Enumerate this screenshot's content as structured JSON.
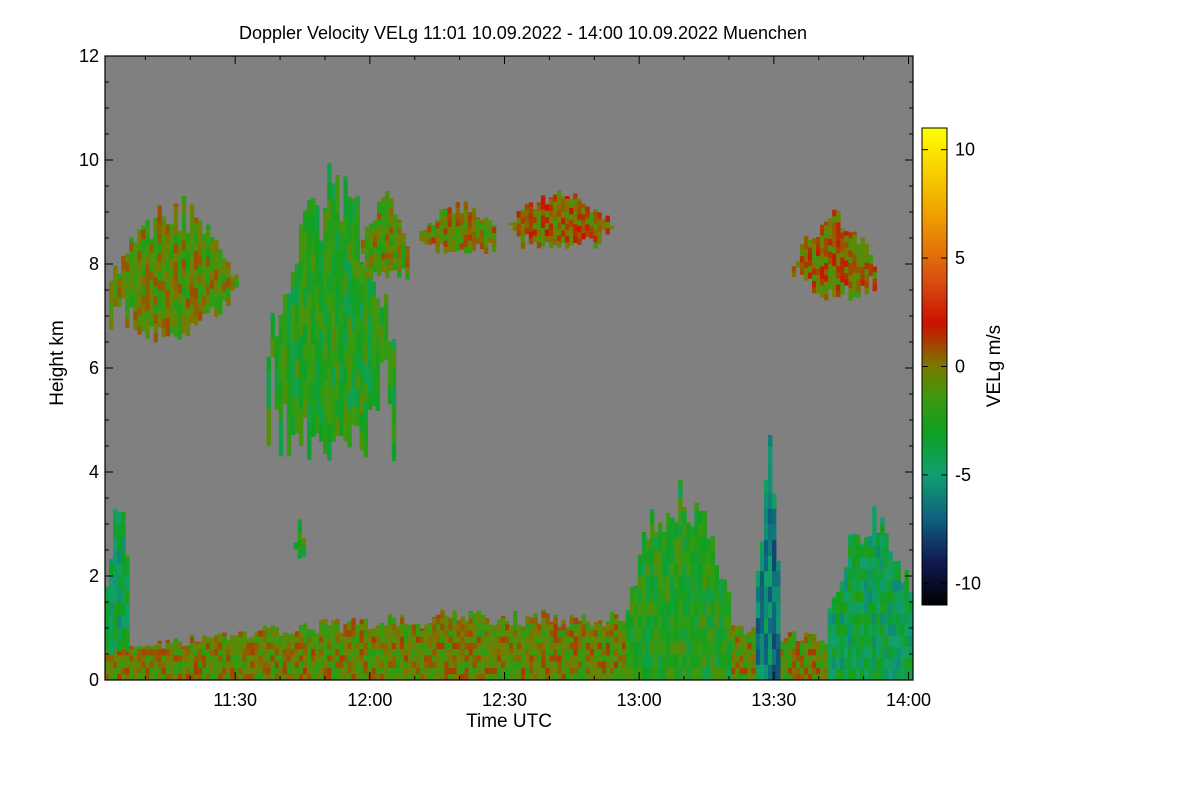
{
  "chart_data": {
    "type": "heatmap",
    "title": "Doppler Velocity VELg   11:01 10.09.2022 - 14:00 10.09.2022 Muenchen",
    "xlabel": "Time UTC",
    "ylabel": "Height km",
    "x_range_minutes_utc": [
      661,
      841
    ],
    "x_ticks": [
      {
        "minute": 690,
        "label": "11:30"
      },
      {
        "minute": 720,
        "label": "12:00"
      },
      {
        "minute": 750,
        "label": "12:30"
      },
      {
        "minute": 780,
        "label": "13:00"
      },
      {
        "minute": 810,
        "label": "13:30"
      },
      {
        "minute": 840,
        "label": "14:00"
      }
    ],
    "y_range_km": [
      0,
      12
    ],
    "y_ticks": [
      {
        "value": 0,
        "label": "0"
      },
      {
        "value": 2,
        "label": "2"
      },
      {
        "value": 4,
        "label": "4"
      },
      {
        "value": 6,
        "label": "6"
      },
      {
        "value": 8,
        "label": "8"
      },
      {
        "value": 10,
        "label": "10"
      },
      {
        "value": 12,
        "label": "12"
      }
    ],
    "background_color": "#808080",
    "colorbar": {
      "label": "VELg m/s",
      "range": [
        -11,
        11
      ],
      "ticks": [
        {
          "value": 10,
          "label": "10"
        },
        {
          "value": 5,
          "label": "5"
        },
        {
          "value": 0,
          "label": "0"
        },
        {
          "value": -5,
          "label": "-5"
        },
        {
          "value": -10,
          "label": "-10"
        }
      ],
      "stops": [
        {
          "value": 11,
          "color": "#ffff00"
        },
        {
          "value": 7,
          "color": "#f0a000"
        },
        {
          "value": 4,
          "color": "#d85010"
        },
        {
          "value": 2,
          "color": "#cc1000"
        },
        {
          "value": 0,
          "color": "#7a7a00"
        },
        {
          "value": -1.5,
          "color": "#3a9a10"
        },
        {
          "value": -3,
          "color": "#10a020"
        },
        {
          "value": -5,
          "color": "#10a070"
        },
        {
          "value": -7,
          "color": "#106080"
        },
        {
          "value": -9,
          "color": "#101a50"
        },
        {
          "value": -11,
          "color": "#000000"
        }
      ]
    },
    "regions": [
      {
        "name": "upper-cloud-west",
        "t_start": 661,
        "t_end": 690,
        "h_bottom": 6.5,
        "h_top": 9.0,
        "velocity": -0.8
      },
      {
        "name": "fall-streak",
        "t_start": 697,
        "t_end": 725,
        "h_bottom": 4.2,
        "h_top": 9.2,
        "velocity": -2.5
      },
      {
        "name": "upper-cloud-1205",
        "t_start": 718,
        "t_end": 728,
        "h_bottom": 7.7,
        "h_top": 9.2,
        "velocity": -0.8
      },
      {
        "name": "upper-cloud-1215",
        "t_start": 731,
        "t_end": 748,
        "h_bottom": 8.2,
        "h_top": 9.1,
        "velocity": -0.3
      },
      {
        "name": "upper-cloud-1245",
        "t_start": 750,
        "t_end": 774,
        "h_bottom": 8.3,
        "h_top": 9.3,
        "velocity": 0.3
      },
      {
        "name": "upper-cloud-1340",
        "t_start": 814,
        "t_end": 832,
        "h_bottom": 7.3,
        "h_top": 8.9,
        "velocity": 0.2
      },
      {
        "name": "low-convective-west",
        "t_start": 661,
        "t_end": 666,
        "h_bottom": 0.0,
        "h_top": 3.5,
        "velocity": -4.0
      },
      {
        "name": "isolated-patch-1146",
        "t_start": 703,
        "t_end": 705,
        "h_bottom": 2.3,
        "h_top": 3.0,
        "velocity": -2.0
      },
      {
        "name": "boundary-layer",
        "t_start": 661,
        "t_end": 841,
        "h_bottom": 0.0,
        "h_top": 1.2,
        "velocity": -0.5
      },
      {
        "name": "convection-1300",
        "t_start": 777,
        "t_end": 800,
        "h_bottom": 0.0,
        "h_top": 3.5,
        "velocity": -2.5
      },
      {
        "name": "core-1330",
        "t_start": 806,
        "t_end": 811,
        "h_bottom": 0.0,
        "h_top": 4.2,
        "velocity": -6.0
      },
      {
        "name": "convection-1345",
        "t_start": 822,
        "t_end": 841,
        "h_bottom": 0.0,
        "h_top": 3.0,
        "velocity": -4.0
      }
    ]
  }
}
